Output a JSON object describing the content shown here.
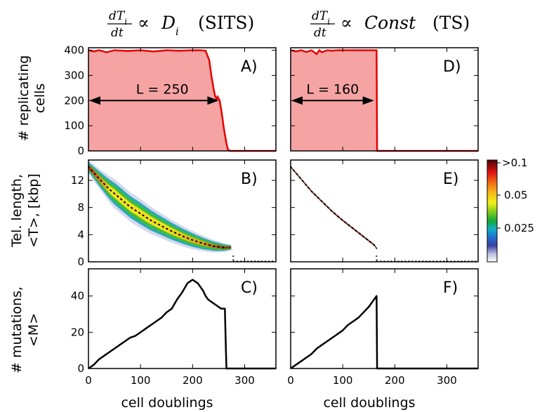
{
  "figure": {
    "titles": [
      {
        "lhs_num": "dT",
        "lhs_sub": "i",
        "lhs_den": "dt",
        "prop": "∝",
        "rhs": "D",
        "rhs_sub": "i",
        "tag": "(SITS)"
      },
      {
        "lhs_num": "dT",
        "lhs_sub": "i",
        "lhs_den": "dt",
        "prop": "∝",
        "rhs": "Const",
        "rhs_sub": "",
        "tag": "(TS)"
      }
    ],
    "xlabel": "cell doublings",
    "row_ylabels": [
      [
        "#",
        "replicating",
        "cells"
      ],
      [
        "Tel. length,",
        "<T>, [kbp]"
      ],
      [
        "# mutations,",
        "<M>"
      ]
    ],
    "colorbar": {
      "ticks": [
        ">0.1",
        "0.05",
        "0.025"
      ]
    }
  },
  "chart_data": [
    {
      "panel": "A)",
      "type": "area",
      "xlim": [
        0,
        360
      ],
      "ylim": [
        0,
        410
      ],
      "xticks": [
        0,
        100,
        200,
        300
      ],
      "yticks": [
        0,
        100,
        200,
        300,
        400
      ],
      "fill_color": "#f5a3a3",
      "line_color": "#e60000",
      "annotation": {
        "label": "L = 250",
        "x0": 0,
        "x1": 250,
        "y": 200
      },
      "series": [
        {
          "x": [
            0,
            10,
            20,
            35,
            50,
            75,
            100,
            125,
            150,
            175,
            200,
            215,
            225,
            232,
            236,
            240,
            243,
            246,
            248,
            252,
            256,
            260,
            265,
            268,
            272,
            280,
            300,
            330,
            360
          ],
          "y": [
            400,
            395,
            400,
            392,
            400,
            397,
            400,
            395,
            400,
            398,
            400,
            400,
            398,
            360,
            300,
            250,
            220,
            205,
            215,
            200,
            150,
            90,
            30,
            5,
            0,
            0,
            0,
            0,
            0
          ]
        }
      ]
    },
    {
      "panel": "B)",
      "type": "heatmap",
      "xlim": [
        0,
        360
      ],
      "ylim": [
        0,
        15
      ],
      "xticks": [
        0,
        100,
        200,
        300
      ],
      "yticks": [
        0,
        4,
        8,
        12
      ],
      "mean": {
        "x": [
          0,
          20,
          40,
          60,
          80,
          100,
          120,
          140,
          160,
          180,
          200,
          220,
          240,
          260
        ],
        "y": [
          14.0,
          12.3,
          10.7,
          9.4,
          8.1,
          7.1,
          6.1,
          5.3,
          4.5,
          3.8,
          3.2,
          2.7,
          2.3,
          2.1
        ]
      },
      "band_halfwidth": {
        "x": [
          0,
          50,
          100,
          150,
          200,
          250,
          275
        ],
        "y": [
          0.7,
          1.6,
          1.6,
          1.3,
          1.0,
          0.6,
          0.3
        ]
      }
    },
    {
      "panel": "C)",
      "type": "line",
      "xlim": [
        0,
        360
      ],
      "ylim": [
        0,
        55
      ],
      "xticks": [
        0,
        100,
        200,
        300
      ],
      "yticks": [
        0,
        20,
        40
      ],
      "line_color": "#000000",
      "series": [
        {
          "x": [
            0,
            10,
            20,
            30,
            40,
            50,
            60,
            70,
            80,
            90,
            100,
            110,
            120,
            130,
            140,
            150,
            160,
            170,
            180,
            190,
            195,
            200,
            205,
            210,
            215,
            220,
            225,
            230,
            235,
            240,
            245,
            250,
            255,
            260,
            262,
            264,
            265,
            280,
            300,
            330,
            360
          ],
          "y": [
            0,
            2,
            5,
            7,
            9,
            11,
            13,
            15,
            17,
            18,
            20,
            22,
            24,
            26,
            28,
            31,
            33,
            38,
            42,
            47,
            48,
            49,
            48,
            47,
            45,
            43,
            40,
            38,
            37,
            36,
            35,
            34,
            33,
            33,
            33,
            10,
            0,
            0,
            0,
            0,
            0
          ]
        }
      ]
    },
    {
      "panel": "D)",
      "type": "area",
      "xlim": [
        0,
        360
      ],
      "ylim": [
        0,
        410
      ],
      "xticks": [
        0,
        100,
        200,
        300
      ],
      "yticks": [
        0,
        100,
        200,
        300,
        400
      ],
      "fill_color": "#f5a3a3",
      "line_color": "#e60000",
      "annotation": {
        "label": "L = 160",
        "x0": 0,
        "x1": 160,
        "y": 200
      },
      "series": [
        {
          "x": [
            0,
            10,
            20,
            30,
            40,
            50,
            55,
            60,
            70,
            80,
            90,
            100,
            120,
            140,
            160,
            165,
            166,
            180,
            250,
            300,
            360
          ],
          "y": [
            400,
            395,
            400,
            393,
            400,
            385,
            400,
            392,
            400,
            398,
            400,
            400,
            400,
            400,
            400,
            400,
            0,
            0,
            0,
            0,
            0
          ]
        }
      ]
    },
    {
      "panel": "E)",
      "type": "heatmap",
      "xlim": [
        0,
        360
      ],
      "ylim": [
        0,
        15
      ],
      "xticks": [
        0,
        100,
        200,
        300
      ],
      "yticks": [
        0,
        4,
        8,
        12
      ],
      "mean": {
        "x": [
          0,
          20,
          40,
          60,
          80,
          100,
          120,
          140,
          160,
          165
        ],
        "y": [
          14.0,
          12.2,
          10.4,
          8.9,
          7.4,
          6.1,
          4.9,
          3.7,
          2.5,
          2.0
        ]
      },
      "band_halfwidth": {
        "x": [
          0,
          165
        ],
        "y": [
          0.15,
          0.15
        ]
      }
    },
    {
      "panel": "F)",
      "type": "line",
      "xlim": [
        0,
        360
      ],
      "ylim": [
        0,
        55
      ],
      "xticks": [
        0,
        100,
        200,
        300
      ],
      "yticks": [
        0,
        20,
        40
      ],
      "line_color": "#000000",
      "series": [
        {
          "x": [
            0,
            10,
            20,
            30,
            40,
            50,
            60,
            70,
            80,
            90,
            100,
            110,
            120,
            130,
            140,
            150,
            160,
            165,
            166,
            200,
            250,
            300,
            360
          ],
          "y": [
            0,
            2,
            4,
            6,
            8,
            11,
            13,
            15,
            17,
            19,
            21,
            24,
            26,
            28,
            31,
            34,
            38,
            40,
            0,
            0,
            0,
            0,
            0
          ]
        }
      ]
    }
  ]
}
